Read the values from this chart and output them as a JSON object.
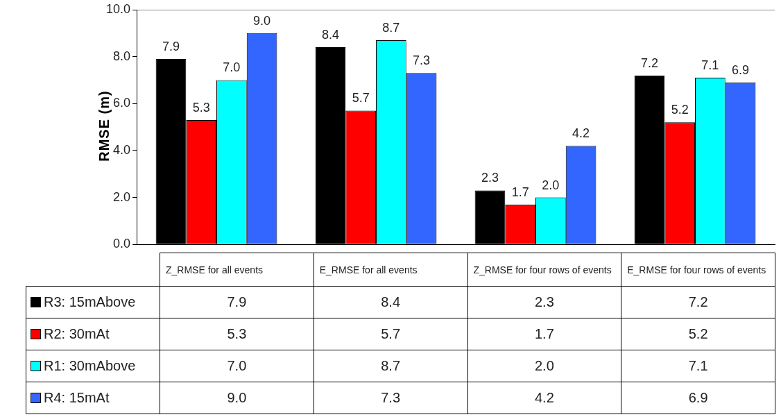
{
  "chart_data": {
    "type": "bar",
    "ylabel": "RMSE (m)",
    "categories": [
      "Z_RMSE for all events",
      "E_RMSE for all events",
      "Z_RMSE for four rows of events",
      "E_RMSE for four rows of events"
    ],
    "series": [
      {
        "name": "R3: 15mAbove",
        "color": "#000000",
        "values": [
          7.9,
          8.4,
          2.3,
          7.2
        ],
        "value_labels": [
          "7.9",
          "8.4",
          "2.3",
          "7.2"
        ]
      },
      {
        "name": "R2: 30mAt",
        "color": "#ff0000",
        "values": [
          5.3,
          5.7,
          1.7,
          5.2
        ],
        "value_labels": [
          "5.3",
          "5.7",
          "1.7",
          "5.2"
        ]
      },
      {
        "name": "R1: 30mAbove",
        "color": "#00ffff",
        "values": [
          7.0,
          8.7,
          2.0,
          7.1
        ],
        "value_labels": [
          "7.0",
          "8.7",
          "2.0",
          "7.1"
        ]
      },
      {
        "name": "R4: 15mAt",
        "color": "#3366ff",
        "values": [
          9.0,
          7.3,
          4.2,
          6.9
        ],
        "value_labels": [
          "9.0",
          "7.3",
          "4.2",
          "6.9"
        ]
      }
    ],
    "ylim": [
      0,
      10
    ],
    "yticks": [
      {
        "value": 0,
        "label": "0.0"
      },
      {
        "value": 2,
        "label": "2.0"
      },
      {
        "value": 4,
        "label": "4.0"
      },
      {
        "value": 6,
        "label": "6.0"
      },
      {
        "value": 8,
        "label": "8.0"
      },
      {
        "value": 10,
        "label": "10.0"
      }
    ],
    "grid": false,
    "legend": "bottom"
  }
}
